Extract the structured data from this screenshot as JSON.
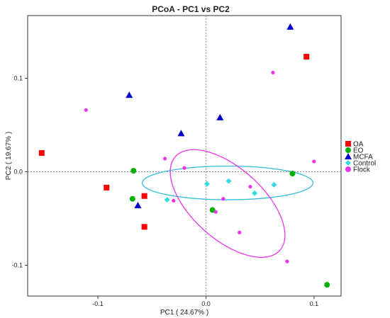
{
  "chart_data": {
    "type": "scatter",
    "title": "PCoA - PC1 vs PC2",
    "xlabel": "PC1 ( 24.67% )",
    "ylabel": "PC2 ( 19.67% )",
    "xlim": [
      -0.165,
      0.125
    ],
    "ylim": [
      -0.133,
      0.167
    ],
    "x_ticks": [
      {
        "value": -0.1,
        "label": "-0.1"
      },
      {
        "value": 0.0,
        "label": "0.0"
      },
      {
        "value": 0.1,
        "label": "0.1"
      }
    ],
    "y_ticks": [
      {
        "value": -0.1,
        "label": "-0.1"
      },
      {
        "value": 0.0,
        "label": "0.0"
      },
      {
        "value": 0.1,
        "label": "0.1"
      }
    ],
    "reference_lines": {
      "x": 0,
      "y": 0,
      "style": "dotted"
    },
    "grid": false,
    "legend_position": "right",
    "series": [
      {
        "name": "OA",
        "color": "#ff0000",
        "marker": "square",
        "points": [
          [
            -0.152,
            0.02
          ],
          [
            -0.092,
            -0.017
          ],
          [
            -0.057,
            -0.026
          ],
          [
            -0.057,
            -0.059
          ],
          [
            0.093,
            0.123
          ]
        ]
      },
      {
        "name": "EO",
        "color": "#00b000",
        "marker": "circle",
        "points": [
          [
            -0.067,
            0.001
          ],
          [
            -0.068,
            -0.029
          ],
          [
            0.006,
            -0.041
          ],
          [
            0.08,
            -0.002
          ],
          [
            0.112,
            -0.121
          ]
        ]
      },
      {
        "name": "MCFA",
        "color": "#0000cc",
        "marker": "triangle",
        "points": [
          [
            -0.071,
            0.082
          ],
          [
            -0.063,
            -0.036
          ],
          [
            -0.023,
            0.041
          ],
          [
            0.013,
            0.058
          ],
          [
            0.078,
            0.155
          ]
        ]
      },
      {
        "name": "Control",
        "color": "#33dddd",
        "marker": "diamond",
        "points": [
          [
            -0.036,
            -0.03
          ],
          [
            0.001,
            -0.013
          ],
          [
            0.021,
            -0.01
          ],
          [
            0.045,
            -0.023
          ],
          [
            0.063,
            -0.014
          ]
        ]
      },
      {
        "name": "Flock",
        "color": "#ee33ee",
        "marker": "dot",
        "points": [
          [
            -0.111,
            0.066
          ],
          [
            -0.038,
            0.014
          ],
          [
            -0.03,
            -0.031
          ],
          [
            -0.02,
            0.004
          ],
          [
            0.016,
            -0.029
          ],
          [
            0.009,
            -0.043
          ],
          [
            0.031,
            -0.065
          ],
          [
            0.041,
            -0.016
          ],
          [
            0.062,
            0.106
          ],
          [
            0.075,
            -0.096
          ],
          [
            0.1,
            0.011
          ]
        ]
      }
    ],
    "ellipses": [
      {
        "group": "Control",
        "color": "#33bbdd",
        "center": [
          0.02,
          -0.012
        ],
        "rx": 0.079,
        "ry": 0.018,
        "angle_deg": 0
      },
      {
        "group": "Flock",
        "color": "#ee33ee",
        "center": [
          0.02,
          -0.034
        ],
        "rx": 0.065,
        "ry": 0.038,
        "angle_deg": 42
      }
    ]
  }
}
